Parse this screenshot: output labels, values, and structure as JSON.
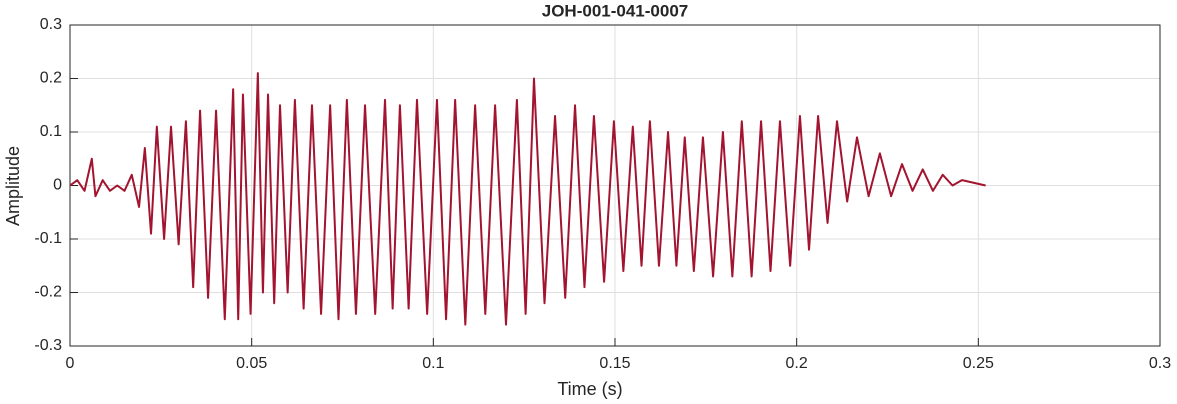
{
  "chart_data": {
    "type": "line",
    "title": "JOH-001-041-0007",
    "xlabel": "Time (s)",
    "ylabel": "Amplitude",
    "xlim": [
      0,
      0.3
    ],
    "xticks": [
      0,
      0.05,
      0.1,
      0.15,
      0.2,
      0.25,
      0.3
    ],
    "ylim": [
      -0.3,
      0.3
    ],
    "yticks": [
      -0.3,
      -0.2,
      -0.1,
      0,
      0.1,
      0.2,
      0.3
    ],
    "grid": true,
    "x": [
      0,
      0.002,
      0.004,
      0.006,
      0.007,
      0.009,
      0.011,
      0.013,
      0.015,
      0.017,
      0.019,
      0.0206,
      0.0223,
      0.0239,
      0.0259,
      0.0278,
      0.0299,
      0.0319,
      0.0339,
      0.0358,
      0.038,
      0.0402,
      0.0426,
      0.0449,
      0.0463,
      0.0476,
      0.0497,
      0.0517,
      0.0531,
      0.0545,
      0.0562,
      0.0578,
      0.0599,
      0.0619,
      0.0643,
      0.0666,
      0.0691,
      0.0716,
      0.0739,
      0.0762,
      0.0787,
      0.0812,
      0.084,
      0.0867,
      0.0888,
      0.0908,
      0.0932,
      0.0955,
      0.0983,
      0.101,
      0.1035,
      0.106,
      0.1088,
      0.1115,
      0.1143,
      0.117,
      0.12,
      0.123,
      0.1254,
      0.1277,
      0.1306,
      0.1335,
      0.1363,
      0.139,
      0.1416,
      0.1442,
      0.147,
      0.1497,
      0.1523,
      0.1549,
      0.1573,
      0.1596,
      0.1621,
      0.1646,
      0.1669,
      0.1692,
      0.1717,
      0.1742,
      0.177,
      0.1797,
      0.1823,
      0.1849,
      0.1876,
      0.1902,
      0.1928,
      0.1954,
      0.1982,
      0.2009,
      0.2034,
      0.2059,
      0.2085,
      0.2111,
      0.2139,
      0.2166,
      0.2198,
      0.2229,
      0.226,
      0.229,
      0.2319,
      0.2347,
      0.2375,
      0.2402,
      0.2429,
      0.2455,
      0.252
    ],
    "series": [
      {
        "name": "Amplitude",
        "color": "#a2142f",
        "values": [
          0,
          0.01,
          -0.01,
          0.05,
          -0.02,
          0.01,
          -0.01,
          0,
          -0.01,
          0.02,
          -0.04,
          0.07,
          -0.09,
          0.11,
          -0.1,
          0.11,
          -0.11,
          0.12,
          -0.19,
          0.14,
          -0.21,
          0.14,
          -0.25,
          0.18,
          -0.25,
          0.17,
          -0.24,
          0.21,
          -0.2,
          0.17,
          -0.22,
          0.15,
          -0.2,
          0.16,
          -0.23,
          0.15,
          -0.24,
          0.15,
          -0.25,
          0.16,
          -0.24,
          0.15,
          -0.24,
          0.16,
          -0.23,
          0.15,
          -0.23,
          0.16,
          -0.24,
          0.16,
          -0.25,
          0.16,
          -0.26,
          0.15,
          -0.24,
          0.15,
          -0.26,
          0.16,
          -0.24,
          0.2,
          -0.22,
          0.13,
          -0.21,
          0.15,
          -0.19,
          0.13,
          -0.18,
          0.12,
          -0.16,
          0.11,
          -0.15,
          0.12,
          -0.15,
          0.1,
          -0.15,
          0.09,
          -0.16,
          0.09,
          -0.17,
          0.1,
          -0.17,
          0.12,
          -0.17,
          0.12,
          -0.16,
          0.12,
          -0.15,
          0.13,
          -0.12,
          0.13,
          -0.07,
          0.12,
          -0.03,
          0.09,
          -0.02,
          0.06,
          -0.02,
          0.04,
          -0.01,
          0.03,
          -0.01,
          0.02,
          0,
          0.01,
          0
        ]
      }
    ]
  }
}
